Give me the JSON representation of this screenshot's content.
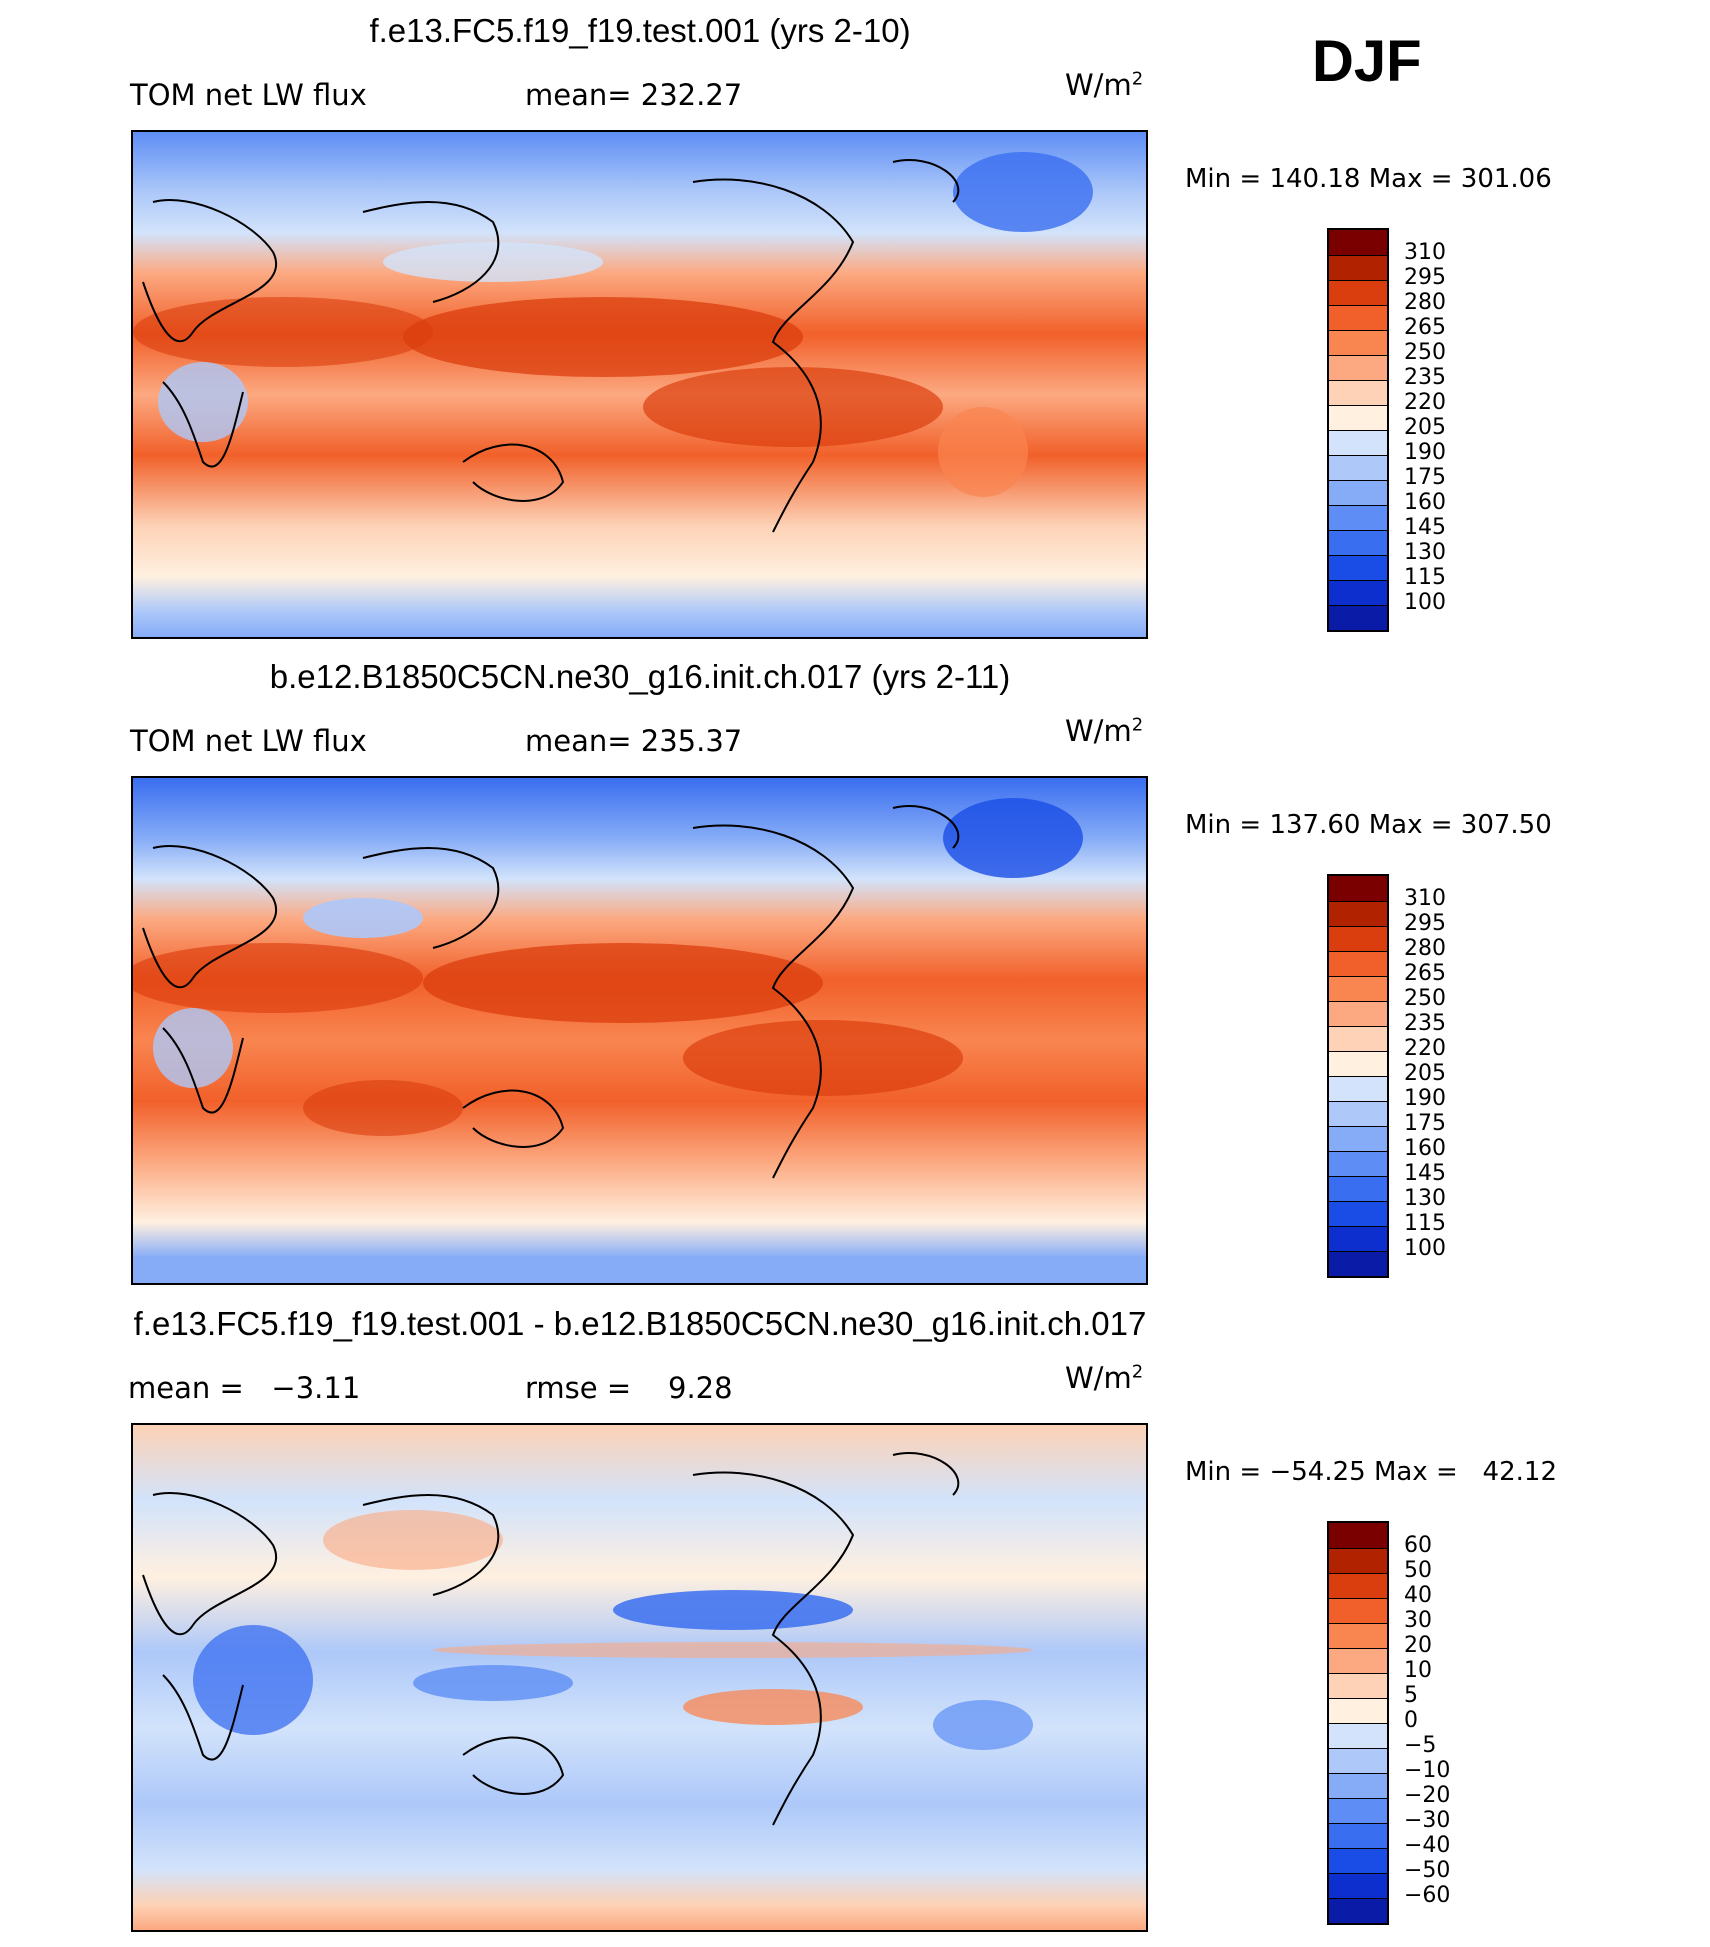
{
  "season": "DJF",
  "units": {
    "base": "W/m",
    "exp": "2"
  },
  "colors": {
    "abs_scale": [
      "#08006e",
      "#0a1ba8",
      "#0d2fcd",
      "#1a4de6",
      "#3a6ef0",
      "#5e8ef5",
      "#86acf7",
      "#adc8f9",
      "#d2e3fb",
      "#fff0e0",
      "#fdd2b6",
      "#fca981",
      "#f98550",
      "#f1602a",
      "#db3e0e",
      "#b12200",
      "#7a0000"
    ],
    "diff_scale": [
      "#08006e",
      "#0a1ba8",
      "#0d2fcd",
      "#1a4de6",
      "#3a6ef0",
      "#5e8ef5",
      "#86acf7",
      "#adc8f9",
      "#d2e3fb",
      "#fff0e0",
      "#fdd2b6",
      "#fca981",
      "#f98550",
      "#f1602a",
      "#db3e0e",
      "#b12200",
      "#7a0000"
    ]
  },
  "chart_data": [
    {
      "type": "heatmap",
      "title": "f.e13.FC5.f19_f19.test.001 (yrs 2-10)",
      "variable": "TOM net LW flux",
      "mean_label": "mean=",
      "mean": "232.27",
      "min_label": "Min =",
      "min": "140.18",
      "max_label": "Max =",
      "max": "301.06",
      "colorbar_levels": [
        "310",
        "295",
        "280",
        "265",
        "250",
        "235",
        "220",
        "205",
        "190",
        "175",
        "160",
        "145",
        "130",
        "115",
        "100"
      ]
    },
    {
      "type": "heatmap",
      "title": "b.e12.B1850C5CN.ne30_g16.init.ch.017 (yrs 2-11)",
      "variable": "TOM net LW flux",
      "mean_label": "mean=",
      "mean": "235.37",
      "min_label": "Min =",
      "min": "137.60",
      "max_label": "Max =",
      "max": "307.50",
      "colorbar_levels": [
        "310",
        "295",
        "280",
        "265",
        "250",
        "235",
        "220",
        "205",
        "190",
        "175",
        "160",
        "145",
        "130",
        "115",
        "100"
      ]
    },
    {
      "type": "heatmap",
      "title": "f.e13.FC5.f19_f19.test.001 - b.e12.B1850C5CN.ne30_g16.init.ch.017",
      "mean_label": "mean =",
      "mean": "−3.11",
      "rmse_label": "rmse =",
      "rmse": "9.28",
      "min_label": "Min =",
      "min": "−54.25",
      "max_label": "Max =",
      "max": "42.12",
      "colorbar_levels": [
        "60",
        "50",
        "40",
        "30",
        "20",
        "10",
        "5",
        "0",
        "−5",
        "−10",
        "−20",
        "−30",
        "−40",
        "−50",
        "−60"
      ]
    }
  ]
}
